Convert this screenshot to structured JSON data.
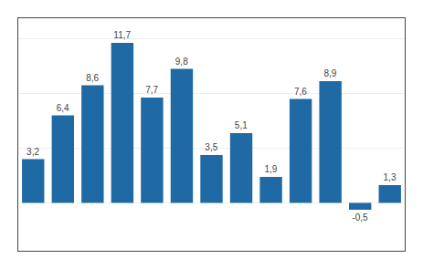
{
  "chart_data": {
    "type": "bar",
    "categories": [
      null,
      null,
      null,
      null,
      null,
      null,
      null,
      null,
      null,
      null,
      null,
      null,
      null
    ],
    "values": [
      3.2,
      6.4,
      8.6,
      11.7,
      7.7,
      9.8,
      3.5,
      5.1,
      1.9,
      7.6,
      8.9,
      -0.5,
      1.3
    ],
    "value_labels": [
      "3,2",
      "6,4",
      "8,6",
      "11,7",
      "7,7",
      "9,8",
      "3,5",
      "5,1",
      "1,9",
      "7,6",
      "8,9",
      "-0,5",
      "1,3"
    ],
    "data_labels": true,
    "color": "#1F6AA5",
    "ylim": [
      -3.5,
      13.5
    ],
    "yticks": [
      0,
      4,
      8,
      12
    ],
    "grid": true,
    "tick_labels": false
  }
}
